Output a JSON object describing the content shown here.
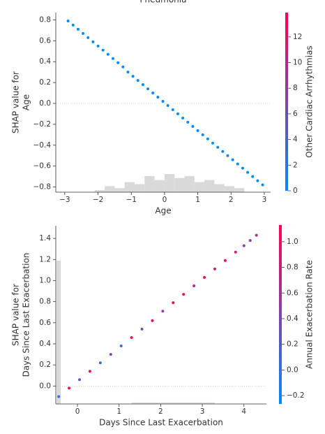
{
  "chart_data": [
    {
      "type": "scatter",
      "title": "Pneumonia",
      "xlabel": "Age",
      "ylabel": [
        "SHAP value for",
        "Age"
      ],
      "colorbar_label": "Other Cardiac Arrhythmias",
      "x": [
        -2.9,
        -2.75,
        -2.6,
        -2.45,
        -2.3,
        -2.15,
        -2.0,
        -1.85,
        -1.7,
        -1.55,
        -1.4,
        -1.25,
        -1.1,
        -0.95,
        -0.8,
        -0.65,
        -0.5,
        -0.35,
        -0.2,
        -0.05,
        0.1,
        0.25,
        0.4,
        0.55,
        0.7,
        0.85,
        1.0,
        1.15,
        1.3,
        1.45,
        1.6,
        1.75,
        1.9,
        2.05,
        2.2,
        2.35,
        2.5,
        2.65,
        2.8,
        2.95
      ],
      "values": [
        0.79,
        0.75,
        0.71,
        0.67,
        0.63,
        0.59,
        0.55,
        0.51,
        0.47,
        0.43,
        0.39,
        0.35,
        0.3,
        0.26,
        0.22,
        0.18,
        0.14,
        0.1,
        0.06,
        0.02,
        -0.02,
        -0.06,
        -0.1,
        -0.14,
        -0.18,
        -0.22,
        -0.26,
        -0.3,
        -0.34,
        -0.38,
        -0.42,
        -0.46,
        -0.5,
        -0.54,
        -0.58,
        -0.62,
        -0.66,
        -0.7,
        -0.74,
        -0.78
      ],
      "color_values": [
        0,
        0,
        0,
        0,
        0,
        0,
        0,
        0,
        0,
        0,
        0,
        0,
        0,
        0,
        0,
        0,
        0,
        0,
        0,
        0,
        0,
        0,
        0,
        0,
        0,
        0,
        0,
        0,
        0,
        0,
        0,
        0,
        0,
        0,
        0,
        0,
        0,
        0,
        0,
        0
      ],
      "colormap": [
        "#008bfb",
        "#ff0051"
      ],
      "histogram": {
        "bins": [
          -2.1,
          -1.8,
          -1.5,
          -1.2,
          -0.9,
          -0.6,
          -0.3,
          0.0,
          0.3,
          0.6,
          0.9,
          1.2,
          1.5,
          1.8,
          2.1,
          2.4
        ],
        "counts": [
          1,
          3,
          2,
          5,
          4,
          8,
          6,
          9,
          7,
          8,
          5,
          6,
          4,
          3,
          2
        ],
        "color": "#d9d9d9"
      },
      "hline": 0,
      "xlim": [
        -3.27,
        3.19
      ],
      "ylim": [
        -0.85,
        0.87
      ],
      "clim": [
        0,
        13.9
      ],
      "xticks": [
        {
          "value": -3,
          "label": "−3"
        },
        {
          "value": -2,
          "label": "−2"
        },
        {
          "value": -1,
          "label": "−1"
        },
        0,
        1,
        2,
        3
      ],
      "yticks": [
        {
          "value": -0.8,
          "label": "−0.8"
        },
        {
          "value": -0.6,
          "label": "−0.6"
        },
        {
          "value": -0.4,
          "label": "−0.4"
        },
        {
          "value": -0.2,
          "label": "−0.2"
        },
        {
          "value": 0,
          "label": "0.0"
        },
        0.2,
        0.4,
        0.6,
        0.8
      ],
      "cticks": [
        0,
        2,
        4,
        6,
        8,
        10,
        12
      ]
    },
    {
      "type": "scatter",
      "xlabel": "Days Since Last Exacerbation",
      "ylabel": [
        "SHAP value for",
        "Days Since Last Exacerbation"
      ],
      "colorbar_label": "Annual Exacerbation Rate",
      "x": [
        -0.45,
        -0.2,
        0.05,
        0.3,
        0.55,
        0.8,
        1.05,
        1.3,
        1.55,
        1.8,
        2.05,
        2.3,
        2.55,
        2.8,
        3.05,
        3.3,
        3.55,
        3.8,
        4.0,
        4.15,
        4.3
      ],
      "values": [
        -0.1,
        -0.02,
        0.06,
        0.14,
        0.22,
        0.3,
        0.38,
        0.46,
        0.54,
        0.62,
        0.71,
        0.79,
        0.87,
        0.95,
        1.03,
        1.11,
        1.19,
        1.27,
        1.33,
        1.38,
        1.43
      ],
      "color_values": [
        0.0,
        1.0,
        0.2,
        1.0,
        0.0,
        0.5,
        0.1,
        1.0,
        0.3,
        1.0,
        0.5,
        1.0,
        0.9,
        0.7,
        1.0,
        0.8,
        1.0,
        0.9,
        0.5,
        0.5,
        0.6
      ],
      "colormap": [
        "#008bfb",
        "#ff0051"
      ],
      "histogram": {
        "bins": [
          -0.5,
          -0.4,
          1.3,
          2.3,
          3.3,
          4.3
        ],
        "counts": [
          100,
          0,
          1,
          1,
          0
        ],
        "color": "#d9d9d9"
      },
      "hline": 0,
      "xlim": [
        -0.52,
        4.54
      ],
      "ylim": [
        -0.17,
        1.52
      ],
      "clim": [
        -0.265,
        1.13
      ],
      "xticks": [
        0,
        1,
        2,
        3,
        4
      ],
      "yticks": [
        {
          "value": 0,
          "label": "0.0"
        },
        0.2,
        0.4,
        0.6,
        0.8,
        {
          "value": 1,
          "label": "1.0"
        },
        1.2,
        1.4
      ],
      "cticks": [
        {
          "value": -0.2,
          "label": "−0.2"
        },
        {
          "value": 0,
          "label": "0.0"
        },
        0.2,
        0.4,
        0.6,
        0.8,
        {
          "value": 1,
          "label": "1.0"
        }
      ]
    }
  ]
}
